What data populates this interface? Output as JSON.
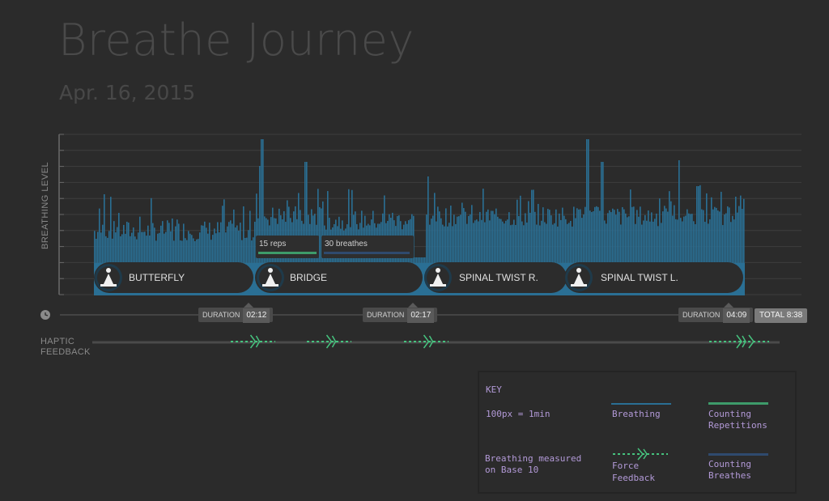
{
  "header": {
    "title": "Breathe Journey",
    "date": "Apr. 16, 2015"
  },
  "chart_data": {
    "type": "bar",
    "ylabel": "BREATHING LEVEL",
    "grid": true,
    "series": [
      {
        "name": "Breathing",
        "color": "#2a6f94"
      }
    ],
    "phases": [
      {
        "label": "BUTTERFLY",
        "icon": "butterfly-pose-icon"
      },
      {
        "label": "BRIDGE",
        "icon": "bridge-pose-icon"
      },
      {
        "label": "SPINAL TWIST R.",
        "icon": "spinal-twist-right-icon"
      },
      {
        "label": "SPINAL TWIST L.",
        "icon": "spinal-twist-left-icon"
      }
    ],
    "counters": [
      {
        "label": "15 reps",
        "type": "Counting Repetitions",
        "color": "#3e9b6a"
      },
      {
        "label": "30 breathes",
        "type": "Counting Breathes",
        "color": "#2f4a6e"
      }
    ]
  },
  "timeline": {
    "clock_icon": "clock-icon",
    "durations": [
      {
        "label": "DURATION",
        "value": "02:12"
      },
      {
        "label": "DURATION",
        "value": "02:17"
      },
      {
        "label": "DURATION",
        "value": "04:09"
      }
    ],
    "total": "TOTAL 8:38"
  },
  "haptic": {
    "label_line1": "HAPTIC",
    "label_line2": "FEEDBACK",
    "color": "#46c27e"
  },
  "key": {
    "title": "KEY",
    "scale": "100px = 1min",
    "base_line1": "Breathing measured",
    "base_line2": "on Base 10",
    "breathing": "Breathing",
    "reps_line1": "Counting",
    "reps_line2": "Repetitions",
    "force_line1": "Force",
    "force_line2": "Feedback",
    "breathes_line1": "Counting",
    "breathes_line2": "Breathes",
    "colors": {
      "breathing": "#2a6f94",
      "reps": "#3e9b6a",
      "force": "#46c27e",
      "breathes": "#2f4a6e",
      "text": "#b39ad8"
    }
  }
}
